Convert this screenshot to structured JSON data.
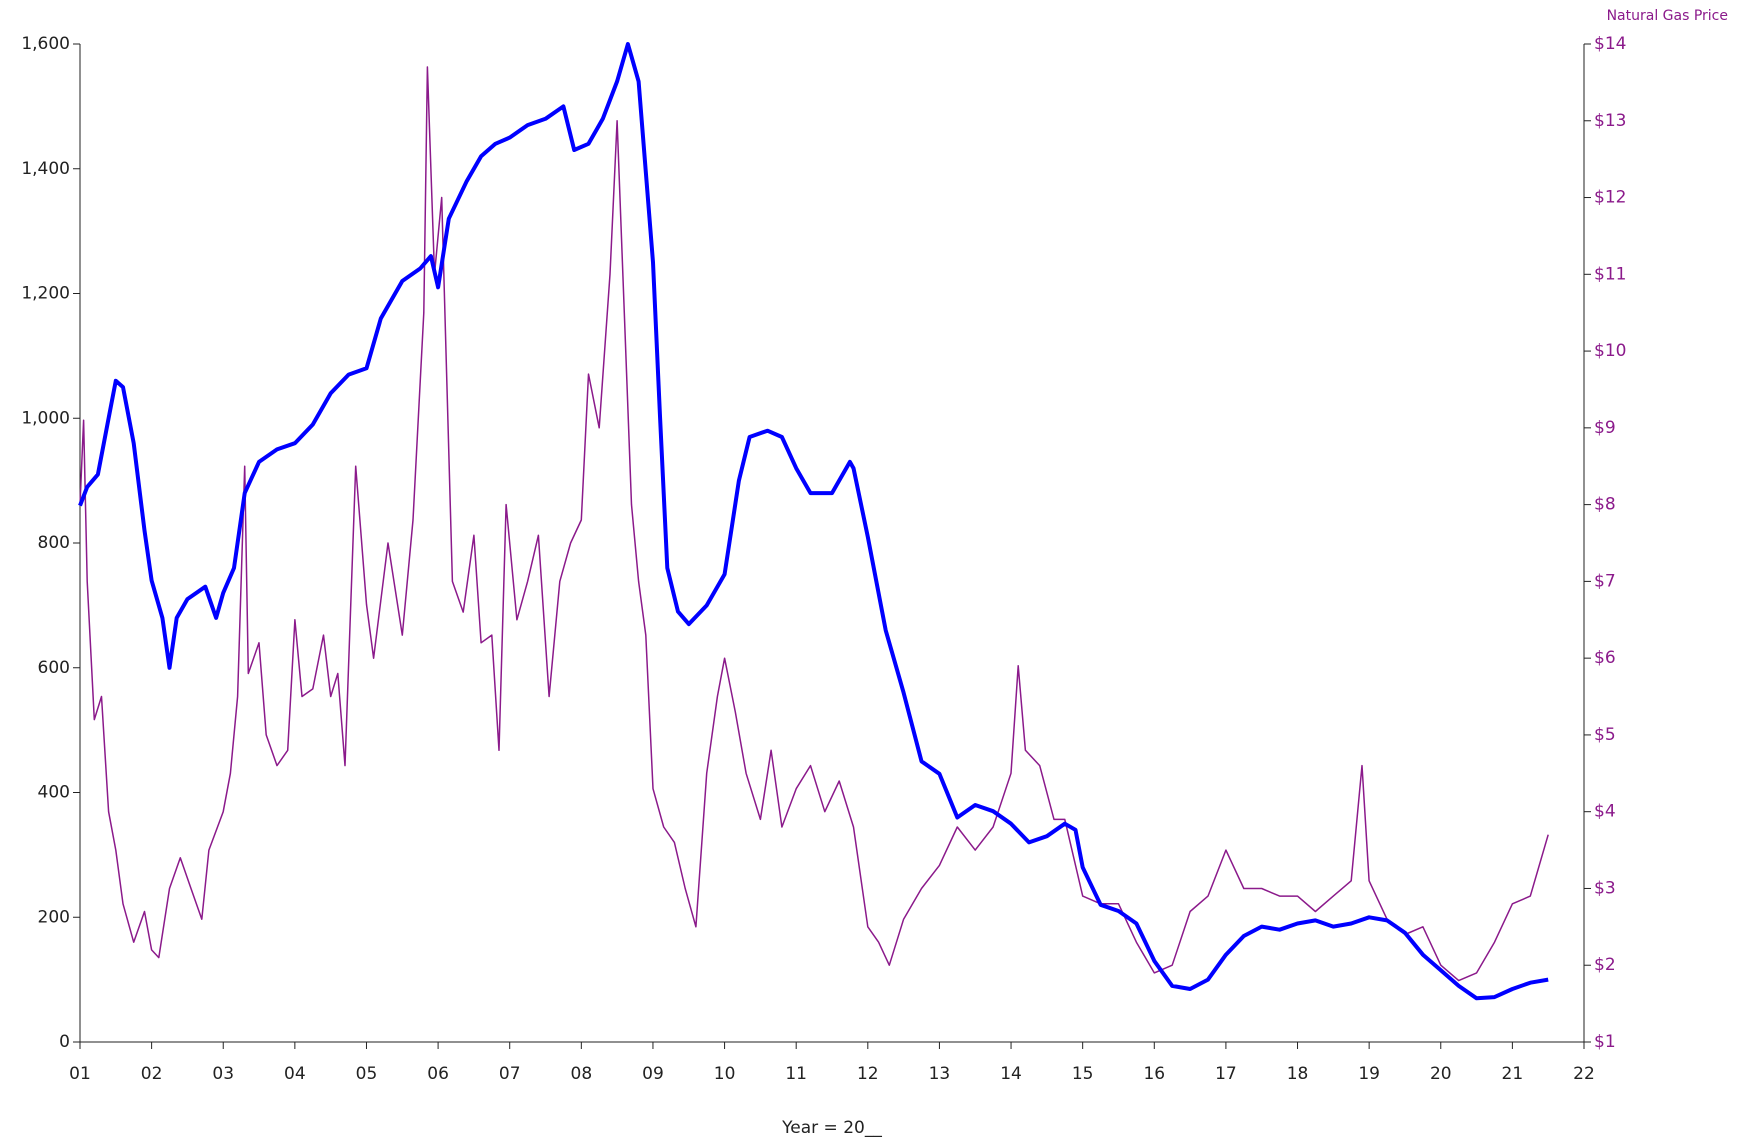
{
  "chart_data": {
    "type": "line",
    "x_label": "Year = 20__",
    "y2_label": "Natural Gas Price",
    "xlim": [
      1,
      22
    ],
    "xticks": [
      {
        "value": 1,
        "label": "01"
      },
      {
        "value": 2,
        "label": "02"
      },
      {
        "value": 3,
        "label": "03"
      },
      {
        "value": 4,
        "label": "04"
      },
      {
        "value": 5,
        "label": "05"
      },
      {
        "value": 6,
        "label": "06"
      },
      {
        "value": 7,
        "label": "07"
      },
      {
        "value": 8,
        "label": "08"
      },
      {
        "value": 9,
        "label": "09"
      },
      {
        "value": 10,
        "label": "10"
      },
      {
        "value": 11,
        "label": "11"
      },
      {
        "value": 12,
        "label": "12"
      },
      {
        "value": 13,
        "label": "13"
      },
      {
        "value": 14,
        "label": "14"
      },
      {
        "value": 15,
        "label": "15"
      },
      {
        "value": 16,
        "label": "16"
      },
      {
        "value": 17,
        "label": "17"
      },
      {
        "value": 18,
        "label": "18"
      },
      {
        "value": 19,
        "label": "19"
      },
      {
        "value": 20,
        "label": "20"
      },
      {
        "value": 21,
        "label": "21"
      },
      {
        "value": 22,
        "label": "22"
      }
    ],
    "ylim": [
      0,
      1600
    ],
    "yticks": [
      0,
      200,
      400,
      600,
      800,
      {
        "value": 1000,
        "label": "1,000"
      },
      {
        "value": 1200,
        "label": "1,200"
      },
      {
        "value": 1400,
        "label": "1,400"
      },
      {
        "value": 1600,
        "label": "1,600"
      }
    ],
    "y2lim": [
      1,
      14
    ],
    "y2ticks": [
      {
        "value": 1,
        "label": "$1"
      },
      {
        "value": 2,
        "label": "$2"
      },
      {
        "value": 3,
        "label": "$3"
      },
      {
        "value": 4,
        "label": "$4"
      },
      {
        "value": 5,
        "label": "$5"
      },
      {
        "value": 6,
        "label": "$6"
      },
      {
        "value": 7,
        "label": "$7"
      },
      {
        "value": 8,
        "label": "$8"
      },
      {
        "value": 9,
        "label": "$9"
      },
      {
        "value": 10,
        "label": "$10"
      },
      {
        "value": 11,
        "label": "$11"
      },
      {
        "value": 12,
        "label": "$12"
      },
      {
        "value": 13,
        "label": "$13"
      },
      {
        "value": 14,
        "label": "$14"
      }
    ],
    "y2_color": "#8b1a8b",
    "series": [
      {
        "color": "#0000ff",
        "axis": "y",
        "width": 4,
        "x": [
          1.0,
          1.1,
          1.25,
          1.4,
          1.5,
          1.6,
          1.75,
          1.9,
          2.0,
          2.15,
          2.25,
          2.35,
          2.5,
          2.75,
          2.9,
          3.0,
          3.15,
          3.3,
          3.5,
          3.75,
          4.0,
          4.25,
          4.5,
          4.75,
          5.0,
          5.2,
          5.5,
          5.75,
          5.9,
          6.0,
          6.15,
          6.4,
          6.6,
          6.8,
          7.0,
          7.25,
          7.5,
          7.75,
          7.9,
          8.1,
          8.3,
          8.5,
          8.65,
          8.8,
          9.0,
          9.1,
          9.2,
          9.35,
          9.5,
          9.75,
          10.0,
          10.2,
          10.35,
          10.6,
          10.8,
          11.0,
          11.2,
          11.5,
          11.75,
          11.8,
          12.0,
          12.25,
          12.5,
          12.75,
          13.0,
          13.25,
          13.5,
          13.75,
          14.0,
          14.25,
          14.5,
          14.75,
          14.9,
          15.0,
          15.25,
          15.5,
          15.75,
          16.0,
          16.25,
          16.5,
          16.75,
          17.0,
          17.25,
          17.5,
          17.75,
          18.0,
          18.25,
          18.5,
          18.75,
          19.0,
          19.25,
          19.5,
          19.75,
          20.0,
          20.25,
          20.5,
          20.75,
          21.0,
          21.25,
          21.5
        ],
        "values": [
          860,
          890,
          910,
          1000,
          1060,
          1050,
          960,
          820,
          740,
          680,
          600,
          680,
          710,
          730,
          680,
          720,
          760,
          880,
          930,
          950,
          960,
          990,
          1040,
          1070,
          1080,
          1160,
          1220,
          1240,
          1260,
          1210,
          1320,
          1380,
          1420,
          1440,
          1450,
          1470,
          1480,
          1500,
          1430,
          1440,
          1480,
          1540,
          1600,
          1540,
          1250,
          1000,
          760,
          690,
          670,
          700,
          750,
          900,
          970,
          980,
          970,
          920,
          880,
          880,
          930,
          920,
          810,
          660,
          560,
          450,
          430,
          360,
          380,
          370,
          350,
          320,
          330,
          350,
          340,
          280,
          220,
          210,
          190,
          130,
          90,
          85,
          100,
          140,
          170,
          185,
          180,
          190,
          195,
          185,
          190,
          200,
          195,
          175,
          140,
          115,
          90,
          70,
          72,
          85,
          95,
          100
        ]
      },
      {
        "color": "#8b1a8b",
        "axis": "y2",
        "width": 1.5,
        "x": [
          1.0,
          1.05,
          1.1,
          1.2,
          1.3,
          1.4,
          1.5,
          1.6,
          1.75,
          1.9,
          2.0,
          2.1,
          2.25,
          2.4,
          2.55,
          2.7,
          2.8,
          3.0,
          3.1,
          3.2,
          3.3,
          3.35,
          3.5,
          3.6,
          3.75,
          3.9,
          4.0,
          4.1,
          4.25,
          4.4,
          4.5,
          4.6,
          4.7,
          4.85,
          5.0,
          5.1,
          5.3,
          5.5,
          5.65,
          5.8,
          5.85,
          5.95,
          6.05,
          6.2,
          6.35,
          6.5,
          6.6,
          6.75,
          6.85,
          6.95,
          7.1,
          7.25,
          7.4,
          7.55,
          7.7,
          7.85,
          8.0,
          8.1,
          8.25,
          8.4,
          8.5,
          8.6,
          8.7,
          8.8,
          8.9,
          9.0,
          9.15,
          9.3,
          9.45,
          9.6,
          9.75,
          9.9,
          10.0,
          10.15,
          10.3,
          10.5,
          10.65,
          10.8,
          11.0,
          11.2,
          11.4,
          11.6,
          11.8,
          12.0,
          12.15,
          12.3,
          12.5,
          12.75,
          13.0,
          13.25,
          13.5,
          13.75,
          14.0,
          14.1,
          14.2,
          14.4,
          14.6,
          14.75,
          15.0,
          15.25,
          15.5,
          15.75,
          16.0,
          16.25,
          16.5,
          16.75,
          17.0,
          17.25,
          17.5,
          17.75,
          18.0,
          18.25,
          18.5,
          18.75,
          18.9,
          19.0,
          19.25,
          19.5,
          19.75,
          20.0,
          20.25,
          20.5,
          20.75,
          21.0,
          21.25,
          21.5
        ],
        "values": [
          8.0,
          9.1,
          7.0,
          5.2,
          5.5,
          4.0,
          3.5,
          2.8,
          2.3,
          2.7,
          2.2,
          2.1,
          3.0,
          3.4,
          3.0,
          2.6,
          3.5,
          4.0,
          4.5,
          5.5,
          8.5,
          5.8,
          6.2,
          5.0,
          4.6,
          4.8,
          6.5,
          5.5,
          5.6,
          6.3,
          5.5,
          5.8,
          4.6,
          8.5,
          6.7,
          6.0,
          7.5,
          6.3,
          7.8,
          10.5,
          13.7,
          11.0,
          12.0,
          7.0,
          6.6,
          7.6,
          6.2,
          6.3,
          4.8,
          8.0,
          6.5,
          7.0,
          7.6,
          5.5,
          7.0,
          7.5,
          7.8,
          9.7,
          9.0,
          11.0,
          13.0,
          10.5,
          8.0,
          7.0,
          6.3,
          4.3,
          3.8,
          3.6,
          3.0,
          2.5,
          4.5,
          5.5,
          6.0,
          5.3,
          4.5,
          3.9,
          4.8,
          3.8,
          4.3,
          4.6,
          4.0,
          4.4,
          3.8,
          2.5,
          2.3,
          2.0,
          2.6,
          3.0,
          3.3,
          3.8,
          3.5,
          3.8,
          4.5,
          5.9,
          4.8,
          4.6,
          3.9,
          3.9,
          2.9,
          2.8,
          2.8,
          2.3,
          1.9,
          2.0,
          2.7,
          2.9,
          3.5,
          3.0,
          3.0,
          2.9,
          2.9,
          2.7,
          2.9,
          3.1,
          4.6,
          3.1,
          2.6,
          2.4,
          2.5,
          2.0,
          1.8,
          1.9,
          2.3,
          2.8,
          2.9,
          3.7
        ]
      }
    ]
  }
}
